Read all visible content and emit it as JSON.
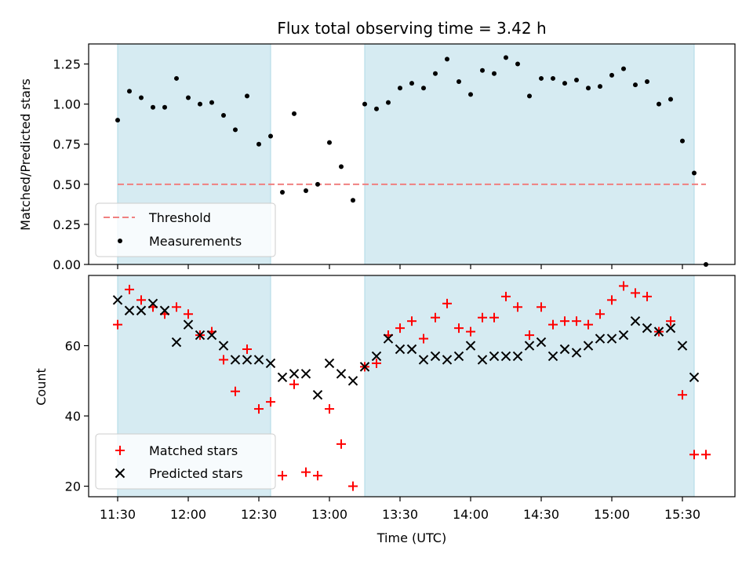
{
  "chart_data": [
    {
      "type": "scatter",
      "title": "Flux total observing time = 3.42 h",
      "xlabel": "",
      "ylabel": "Matched/Predicted stars",
      "ylim": [
        0,
        1.375
      ],
      "yticks": [
        "0.00",
        "0.25",
        "0.50",
        "0.75",
        "1.00",
        "1.25"
      ],
      "ytick_values": [
        0,
        0.25,
        0.5,
        0.75,
        1.0,
        1.25
      ],
      "shaded_intervals": [
        [
          "11:30",
          "12:35"
        ],
        [
          "13:15",
          "15:35"
        ]
      ],
      "threshold": {
        "name": "Threshold",
        "value": 0.5,
        "x_range": [
          "11:30",
          "15:40"
        ],
        "color": "#f08080"
      },
      "series": [
        {
          "name": "Measurements",
          "marker": "dot",
          "color": "#000000",
          "x": [
            "11:30",
            "11:35",
            "11:40",
            "11:45",
            "11:50",
            "11:55",
            "12:00",
            "12:05",
            "12:10",
            "12:15",
            "12:20",
            "12:25",
            "12:30",
            "12:35",
            "12:40",
            "12:45",
            "12:50",
            "12:55",
            "13:00",
            "13:05",
            "13:10",
            "13:15",
            "13:20",
            "13:25",
            "13:30",
            "13:35",
            "13:40",
            "13:45",
            "13:50",
            "13:55",
            "14:00",
            "14:05",
            "14:10",
            "14:15",
            "14:20",
            "14:25",
            "14:30",
            "14:35",
            "14:40",
            "14:45",
            "14:50",
            "14:55",
            "15:00",
            "15:05",
            "15:10",
            "15:15",
            "15:20",
            "15:25",
            "15:30",
            "15:35",
            "15:40"
          ],
          "values": [
            0.9,
            1.08,
            1.04,
            0.98,
            0.98,
            1.16,
            1.04,
            1.0,
            1.01,
            0.93,
            0.84,
            1.05,
            0.75,
            0.8,
            0.45,
            0.94,
            0.46,
            0.5,
            0.76,
            0.61,
            0.4,
            1.0,
            0.97,
            1.01,
            1.1,
            1.13,
            1.1,
            1.19,
            1.28,
            1.14,
            1.06,
            1.21,
            1.19,
            1.29,
            1.25,
            1.05,
            1.16,
            1.16,
            1.13,
            1.15,
            1.1,
            1.11,
            1.18,
            1.22,
            1.12,
            1.14,
            1.0,
            1.03,
            0.77,
            0.57,
            0.0
          ]
        }
      ]
    },
    {
      "type": "scatter",
      "title": "",
      "xlabel": "Time (UTC)",
      "ylabel": "Count",
      "ylim": [
        17,
        80
      ],
      "yticks": [
        "20",
        "40",
        "60"
      ],
      "ytick_values": [
        20,
        40,
        60
      ],
      "xticks": [
        "11:30",
        "12:00",
        "12:30",
        "13:00",
        "13:30",
        "14:00",
        "14:30",
        "15:00",
        "15:30"
      ],
      "shaded_intervals": [
        [
          "11:30",
          "12:35"
        ],
        [
          "13:15",
          "15:35"
        ]
      ],
      "series": [
        {
          "name": "Matched stars",
          "marker": "plus",
          "color": "#ff0000",
          "x": [
            "11:30",
            "11:35",
            "11:40",
            "11:45",
            "11:50",
            "11:55",
            "12:00",
            "12:05",
            "12:10",
            "12:15",
            "12:20",
            "12:25",
            "12:30",
            "12:35",
            "12:40",
            "12:45",
            "12:50",
            "12:55",
            "13:00",
            "13:05",
            "13:10",
            "13:15",
            "13:20",
            "13:25",
            "13:30",
            "13:35",
            "13:40",
            "13:45",
            "13:50",
            "13:55",
            "14:00",
            "14:05",
            "14:10",
            "14:15",
            "14:20",
            "14:25",
            "14:30",
            "14:35",
            "14:40",
            "14:45",
            "14:50",
            "14:55",
            "15:00",
            "15:05",
            "15:10",
            "15:15",
            "15:20",
            "15:25",
            "15:30",
            "15:35",
            "15:40"
          ],
          "values": [
            66,
            76,
            73,
            71,
            69,
            71,
            69,
            63,
            64,
            56,
            47,
            59,
            42,
            44,
            23,
            49,
            24,
            23,
            42,
            32,
            20,
            54,
            55,
            63,
            65,
            67,
            62,
            68,
            72,
            65,
            64,
            68,
            68,
            74,
            71,
            63,
            71,
            66,
            67,
            67,
            66,
            69,
            73,
            77,
            75,
            74,
            64,
            67,
            46,
            29,
            29
          ]
        },
        {
          "name": "Predicted stars",
          "marker": "x",
          "color": "#000000",
          "x": [
            "11:30",
            "11:35",
            "11:40",
            "11:45",
            "11:50",
            "11:55",
            "12:00",
            "12:05",
            "12:10",
            "12:15",
            "12:20",
            "12:25",
            "12:30",
            "12:35",
            "12:40",
            "12:45",
            "12:50",
            "12:55",
            "13:00",
            "13:05",
            "13:10",
            "13:15",
            "13:20",
            "13:25",
            "13:30",
            "13:35",
            "13:40",
            "13:45",
            "13:50",
            "13:55",
            "14:00",
            "14:05",
            "14:10",
            "14:15",
            "14:20",
            "14:25",
            "14:30",
            "14:35",
            "14:40",
            "14:45",
            "14:50",
            "14:55",
            "15:00",
            "15:05",
            "15:10",
            "15:15",
            "15:20",
            "15:25",
            "15:30",
            "15:35"
          ],
          "values": [
            73,
            70,
            70,
            72,
            70,
            61,
            66,
            63,
            63,
            60,
            56,
            56,
            56,
            55,
            51,
            52,
            52,
            46,
            55,
            52,
            50,
            54,
            57,
            62,
            59,
            59,
            56,
            57,
            56,
            57,
            60,
            56,
            57,
            57,
            57,
            60,
            61,
            57,
            59,
            58,
            60,
            62,
            62,
            63,
            67,
            65,
            64,
            65,
            60,
            51
          ]
        }
      ]
    }
  ]
}
